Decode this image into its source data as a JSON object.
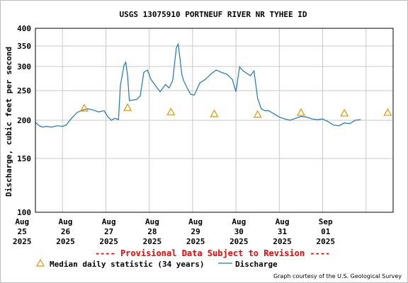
{
  "chart_data": {
    "type": "line",
    "title": "USGS 13075910 PORTNEUF RIVER NR TYHEE ID",
    "xlabel": "",
    "ylabel": "Discharge, cubic feet per second",
    "y_scale": "log",
    "ylim": [
      100,
      400
    ],
    "y_ticks": [
      {
        "value": 100,
        "label": "100"
      },
      {
        "value": 150,
        "label": "150"
      },
      {
        "value": 200,
        "label": "200"
      },
      {
        "value": 250,
        "label": "250"
      },
      {
        "value": 300,
        "label": "300"
      },
      {
        "value": 350,
        "label": "350"
      },
      {
        "value": 400,
        "label": "400"
      }
    ],
    "xlim": [
      "2025-08-24T09:00",
      "2025-09-01T15:00"
    ],
    "x_ticks": [
      {
        "value": "2025-08-25T00:00",
        "label": [
          "Aug",
          "25",
          "2025"
        ]
      },
      {
        "value": "2025-08-26T00:00",
        "label": [
          "Aug",
          "26",
          "2025"
        ]
      },
      {
        "value": "2025-08-27T00:00",
        "label": [
          "Aug",
          "27",
          "2025"
        ]
      },
      {
        "value": "2025-08-28T00:00",
        "label": [
          "Aug",
          "28",
          "2025"
        ]
      },
      {
        "value": "2025-08-29T00:00",
        "label": [
          "Aug",
          "29",
          "2025"
        ]
      },
      {
        "value": "2025-08-30T00:00",
        "label": [
          "Aug",
          "30",
          "2025"
        ]
      },
      {
        "value": "2025-08-31T00:00",
        "label": [
          "Aug",
          "31",
          "2025"
        ]
      },
      {
        "value": "2025-09-01T00:00",
        "label": [
          "Sep",
          "01",
          "2025"
        ]
      }
    ],
    "grid": true,
    "colors": {
      "discharge": "#1f77b4",
      "median": "#e69500",
      "provisional": "#ff0000",
      "grid": "#c8c8c8"
    },
    "series": [
      {
        "name": "Discharge",
        "kind": "line",
        "x": [
          "2025-08-24T09:00",
          "2025-08-24T11:00",
          "2025-08-24T13:00",
          "2025-08-24T15:00",
          "2025-08-24T18:00",
          "2025-08-24T21:00",
          "2025-08-25T00:00",
          "2025-08-25T02:00",
          "2025-08-25T05:00",
          "2025-08-25T08:00",
          "2025-08-25T11:00",
          "2025-08-25T14:00",
          "2025-08-25T17:00",
          "2025-08-25T20:00",
          "2025-08-25T23:00",
          "2025-08-26T01:00",
          "2025-08-26T03:00",
          "2025-08-26T05:00",
          "2025-08-26T07:00",
          "2025-08-26T08:00",
          "2025-08-26T10:00",
          "2025-08-26T11:00",
          "2025-08-26T12:00",
          "2025-08-26T13:00",
          "2025-08-26T15:00",
          "2025-08-26T17:00",
          "2025-08-26T19:00",
          "2025-08-26T21:00",
          "2025-08-26T23:00",
          "2025-08-27T01:00",
          "2025-08-27T03:00",
          "2025-08-27T06:00",
          "2025-08-27T09:00",
          "2025-08-27T11:00",
          "2025-08-27T13:00",
          "2025-08-27T15:00",
          "2025-08-27T16:00",
          "2025-08-27T17:00",
          "2025-08-27T18:00",
          "2025-08-27T19:00",
          "2025-08-27T21:00",
          "2025-08-27T23:00",
          "2025-08-28T01:00",
          "2025-08-28T04:00",
          "2025-08-28T07:00",
          "2025-08-28T10:00",
          "2025-08-28T13:00",
          "2025-08-28T16:00",
          "2025-08-28T19:00",
          "2025-08-28T22:00",
          "2025-08-29T00:00",
          "2025-08-29T02:00",
          "2025-08-29T04:00",
          "2025-08-29T06:00",
          "2025-08-29T08:00",
          "2025-08-29T10:00",
          "2025-08-29T12:00",
          "2025-08-29T14:00",
          "2025-08-29T16:00",
          "2025-08-29T18:00",
          "2025-08-29T21:00",
          "2025-08-30T00:00",
          "2025-08-30T03:00",
          "2025-08-30T06:00",
          "2025-08-30T09:00",
          "2025-08-30T12:00",
          "2025-08-30T15:00",
          "2025-08-30T18:00",
          "2025-08-30T21:00",
          "2025-08-31T00:00",
          "2025-08-31T03:00",
          "2025-08-31T06:00",
          "2025-08-31T09:00",
          "2025-08-31T12:00",
          "2025-08-31T15:00",
          "2025-08-31T18:00",
          "2025-08-31T21:00"
        ],
        "y": [
          197,
          192,
          190,
          191,
          190,
          192,
          191,
          193,
          203,
          212,
          216,
          218,
          216,
          213,
          215,
          206,
          200,
          203,
          201,
          260,
          302,
          310,
          280,
          232,
          233,
          234,
          240,
          287,
          292,
          272,
          262,
          248,
          262,
          255,
          270,
          345,
          355,
          320,
          283,
          270,
          255,
          243,
          242,
          265,
          272,
          283,
          292,
          287,
          283,
          272,
          248,
          299,
          290,
          285,
          280,
          290,
          236,
          218,
          215,
          215,
          210,
          205,
          202,
          200,
          203,
          206,
          205,
          202,
          201,
          202,
          198,
          193,
          192,
          196,
          195,
          200,
          201
        ]
      },
      {
        "name": "Median daily statistic (34 years)",
        "kind": "markers",
        "marker": "triangle",
        "x": [
          "2025-08-25T12:00",
          "2025-08-26T12:00",
          "2025-08-27T12:00",
          "2025-08-28T12:00",
          "2025-08-29T12:00",
          "2025-08-30T12:00",
          "2025-08-31T12:00",
          "2025-09-01T12:00"
        ],
        "y": [
          219,
          220,
          213,
          210,
          209,
          212,
          211,
          212
        ]
      }
    ]
  },
  "annotations": {
    "provisional": "---- Provisional Data Subject to Revision ----",
    "credit": "Graph courtesy of the U.S. Geological Survey"
  },
  "legend": {
    "placement": "bottom",
    "median_label": "Median daily statistic (34 years)",
    "discharge_label": "Discharge"
  }
}
